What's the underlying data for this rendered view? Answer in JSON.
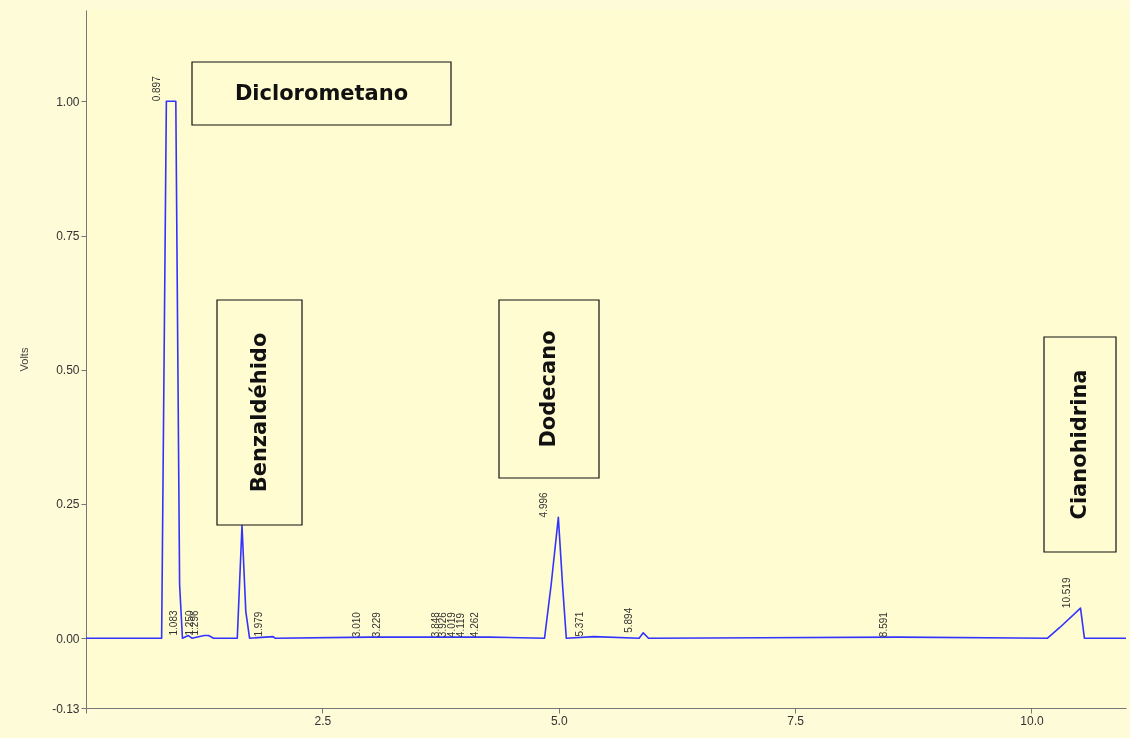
{
  "chart_data": {
    "type": "line",
    "ylabel": "Volts",
    "x": [
      0,
      0.8,
      0.85,
      0.95,
      0.99,
      1.02,
      1.083,
      1.12,
      1.25,
      1.296,
      1.35,
      1.6,
      1.65,
      1.69,
      1.73,
      1.979,
      2.0,
      3.01,
      3.229,
      3.848,
      3.926,
      4.019,
      4.119,
      4.262,
      4.85,
      4.92,
      4.996,
      5.04,
      5.08,
      5.371,
      5.85,
      5.894,
      5.95,
      8.591,
      10.17,
      10.3,
      10.519,
      10.56,
      11.0
    ],
    "series": [
      {
        "color": "#3333ff",
        "values": [
          0,
          0,
          1.0,
          1.0,
          0.1,
          0,
          0.005,
          0,
          0.005,
          0.005,
          0,
          0,
          0.21,
          0.05,
          0,
          0.003,
          0,
          0.002,
          0.002,
          0.002,
          0.002,
          0.002,
          0.002,
          0.002,
          0,
          0.1,
          0.225,
          0.1,
          0,
          0.003,
          0,
          0.01,
          0,
          0.002,
          0,
          0.02,
          0.056,
          0,
          0
        ]
      }
    ],
    "xlim": [
      0,
      11.0
    ],
    "ylim": [
      -0.13,
      1.17
    ],
    "xticks": [
      {
        "value": 0,
        "label": null
      },
      2.5,
      {
        "value": 5,
        "label": "5.0"
      },
      7.5,
      {
        "value": 10,
        "label": "10.0"
      }
    ],
    "yticks": [
      {
        "value": -0.13,
        "label": "-0.13"
      },
      {
        "value": 0,
        "label": "0.00"
      },
      {
        "value": 0.25,
        "label": "0.25"
      },
      {
        "value": 0.5,
        "label": "0.50"
      },
      {
        "value": 0.75,
        "label": "0.75"
      },
      {
        "value": 1.0,
        "label": "1.00"
      }
    ],
    "grid": false,
    "marker": "none",
    "line_style": "solid",
    "annotations": [
      {
        "text": "0.897",
        "x": 0.897,
        "y": 1.0
      },
      {
        "text": "1.083",
        "x": 1.083,
        "y": 0.005
      },
      {
        "text": "1.250",
        "x": 1.25,
        "y": 0.005
      },
      {
        "text": "1.296",
        "x": 1.296,
        "y": 0.005
      },
      {
        "text": "1.979",
        "x": 1.979,
        "y": 0.003
      },
      {
        "text": "3.010",
        "x": 3.01,
        "y": 0.002
      },
      {
        "text": "3.229",
        "x": 3.229,
        "y": 0.002
      },
      {
        "text": "3.848",
        "x": 3.848,
        "y": 0.002
      },
      {
        "text": "3.926",
        "x": 3.926,
        "y": 0.002
      },
      {
        "text": "4.019",
        "x": 4.019,
        "y": 0.002
      },
      {
        "text": "4.119",
        "x": 4.119,
        "y": 0.002
      },
      {
        "text": "4.262",
        "x": 4.262,
        "y": 0.002
      },
      {
        "text": "4.996",
        "x": 4.996,
        "y": 0.225
      },
      {
        "text": "5.371",
        "x": 5.371,
        "y": 0.003
      },
      {
        "text": "5.894",
        "x": 5.894,
        "y": 0.01
      },
      {
        "text": "8.591",
        "x": 8.591,
        "y": 0.002
      },
      {
        "text": "10.519",
        "x": 10.519,
        "y": 0.056
      },
      "Diclorometano",
      "Benzaldéhido",
      "Dodecano",
      "Cianohidrina"
    ]
  }
}
